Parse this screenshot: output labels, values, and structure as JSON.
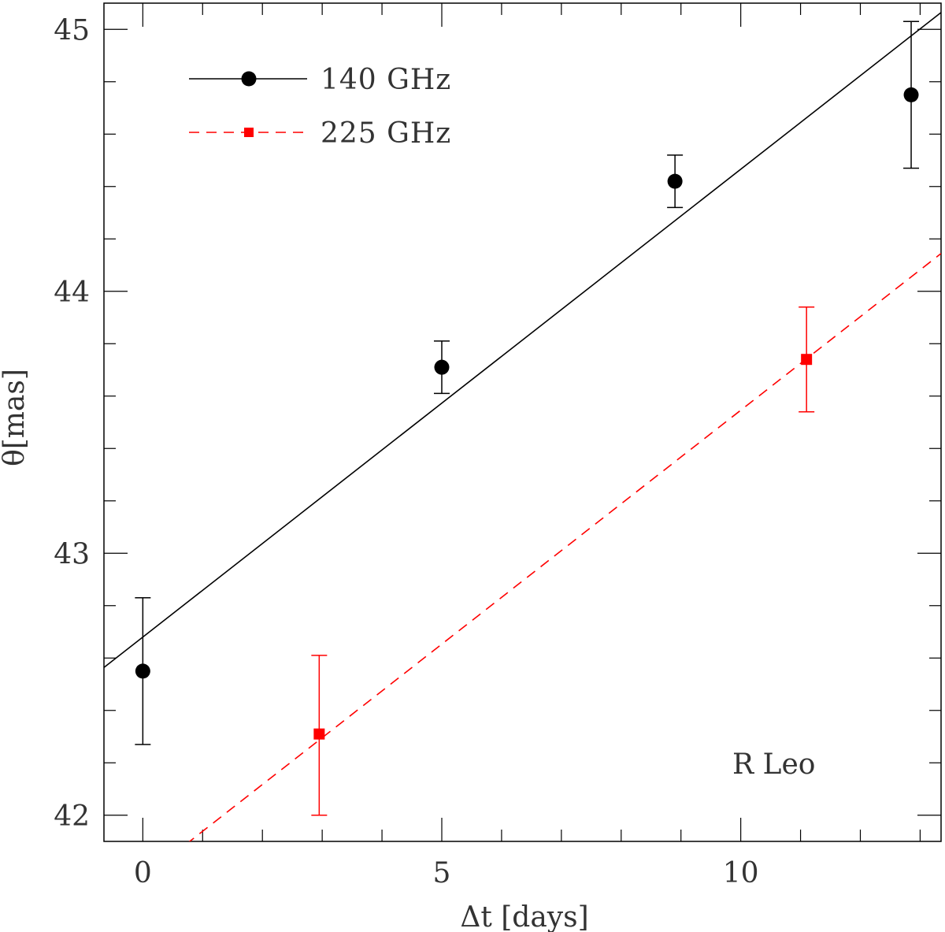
{
  "chart_data": {
    "type": "scatter",
    "title": "",
    "xlabel": "Δt [days]",
    "ylabel": "θ[mas]",
    "xlim": [
      -0.65,
      13.35
    ],
    "ylim": [
      41.9,
      45.1
    ],
    "xticks": [
      0,
      5,
      10
    ],
    "yticks": [
      42,
      43,
      44,
      45
    ],
    "x_minor_step": 1,
    "y_minor_step": 0.2,
    "grid": false,
    "legend_position": "top-left",
    "annotation": "R Leo",
    "series": [
      {
        "name": "140 GHz",
        "color": "#000000",
        "marker": "circle",
        "line_style": "solid",
        "points": [
          {
            "x": 0.0,
            "y": 42.55,
            "yerr_low": 42.27,
            "yerr_high": 42.83
          },
          {
            "x": 5.0,
            "y": 43.71,
            "yerr_low": 43.61,
            "yerr_high": 43.81
          },
          {
            "x": 8.9,
            "y": 44.42,
            "yerr_low": 44.32,
            "yerr_high": 44.52
          },
          {
            "x": 12.85,
            "y": 44.75,
            "yerr_low": 44.47,
            "yerr_high": 45.03
          }
        ],
        "fit": {
          "slope": 0.1786,
          "intercept": 42.68
        }
      },
      {
        "name": "225 GHz",
        "color": "#ff0000",
        "marker": "square",
        "line_style": "dashed",
        "points": [
          {
            "x": 2.95,
            "y": 42.31,
            "yerr_low": 42.0,
            "yerr_high": 42.61
          },
          {
            "x": 11.1,
            "y": 43.74,
            "yerr_low": 43.54,
            "yerr_high": 43.94
          }
        ],
        "fit": {
          "slope": 0.1786,
          "intercept": 41.76
        }
      }
    ]
  }
}
